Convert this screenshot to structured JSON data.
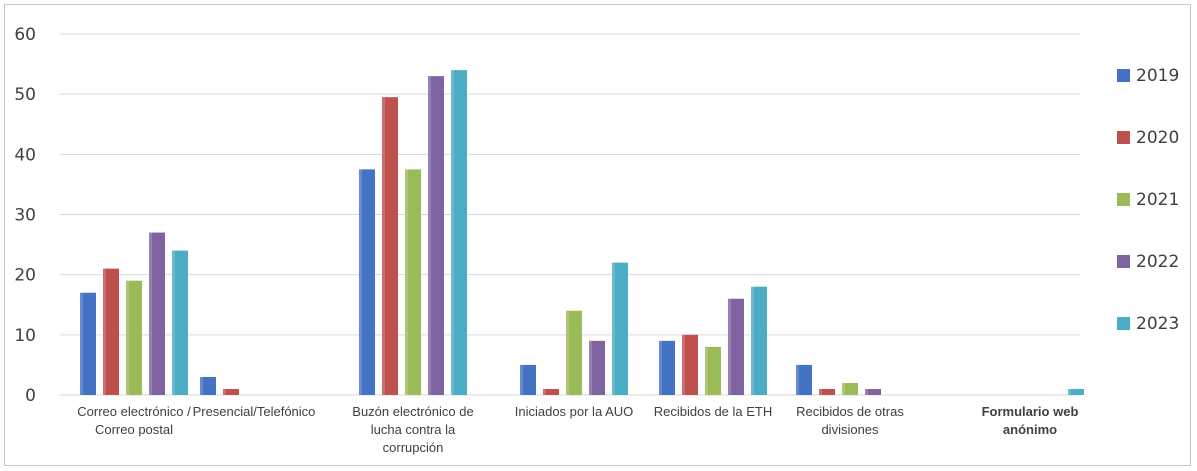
{
  "chart_data": {
    "type": "bar",
    "categories": [
      [
        "Correo electrónico /",
        "Correo postal"
      ],
      [
        "Presencial/Telefónico"
      ],
      [
        "Buzón electrónico de",
        "lucha contra la",
        "corrupción"
      ],
      [
        "Iniciados por la AUO"
      ],
      [
        "Recibidos de la ETH"
      ],
      [
        "Recibidos de otras",
        "divisiones"
      ],
      [
        "Formulario web",
        "anónimo"
      ]
    ],
    "series": [
      {
        "name": "2019",
        "color": "#4472C4",
        "values": [
          17,
          3,
          37.5,
          5,
          9,
          5,
          0
        ]
      },
      {
        "name": "2020",
        "color": "#C0504D",
        "values": [
          21,
          1,
          49.5,
          1,
          10,
          1,
          0
        ]
      },
      {
        "name": "2021",
        "color": "#9BBB59",
        "values": [
          19,
          0,
          37.5,
          14,
          8,
          2,
          0
        ]
      },
      {
        "name": "2022",
        "color": "#8064A2",
        "values": [
          27,
          0,
          53,
          9,
          16,
          1,
          0
        ]
      },
      {
        "name": "2023",
        "color": "#4BACC6",
        "values": [
          24,
          0,
          54,
          22,
          18,
          0,
          1
        ]
      }
    ],
    "title": "",
    "xlabel": "",
    "ylabel": "",
    "ylim": [
      0,
      60
    ],
    "yticks": [
      "0",
      "10",
      "20",
      "30",
      "40",
      "50",
      "60"
    ],
    "grid": true,
    "legend": "right"
  }
}
